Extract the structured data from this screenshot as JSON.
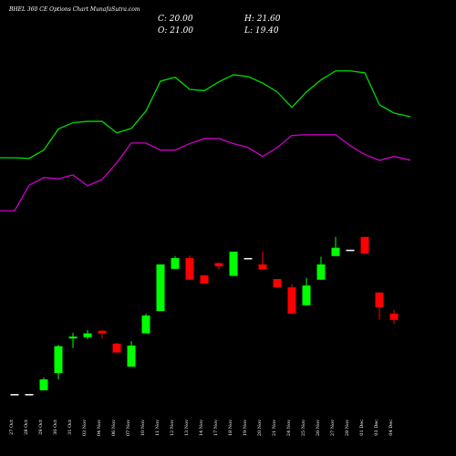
{
  "chart_data": {
    "type": "candlestick",
    "title": "BHEL 360 CE Options Chart MunafaSutra.com",
    "ohlc_labels": [
      "C: 20.00",
      "H: 21.60",
      "O: 21.00",
      "L: 19.40"
    ],
    "categories": [
      "27 Oct",
      "28 Oct",
      "29 Oct",
      "30 Oct",
      "31 Oct",
      "03 Nov",
      "04 Nov",
      "06 Nov",
      "07 Nov",
      "10 Nov",
      "11 Nov",
      "12 Nov",
      "13 Nov",
      "14 Nov",
      "17 Nov",
      "18 Nov",
      "19 Nov",
      "20 Nov",
      "21 Nov",
      "24 Nov",
      "25 Nov",
      "26 Nov",
      "27 Nov",
      "28 Nov",
      "01 Dec",
      "03 Dec",
      "04 Dec"
    ],
    "open": [
      8.4,
      8.4,
      9.0,
      11.7,
      17.1,
      17.3,
      18.3,
      16.3,
      12.7,
      17.9,
      21.4,
      28.0,
      29.7,
      27.0,
      28.9,
      26.9,
      29.7,
      28.7,
      26.4,
      25.1,
      22.3,
      26.3,
      30.0,
      31.0,
      33.0,
      24.3,
      21.0
    ],
    "high": [
      8.4,
      8.4,
      11.0,
      16.1,
      18.0,
      18.4,
      18.4,
      16.4,
      16.7,
      21.0,
      28.7,
      30.0,
      30.1,
      27.0,
      29.0,
      30.7,
      29.7,
      30.7,
      26.4,
      25.6,
      26.6,
      29.9,
      33.0,
      31.0,
      33.0,
      24.3,
      21.6
    ],
    "low": [
      8.4,
      8.4,
      9.0,
      10.7,
      15.6,
      17.0,
      17.1,
      14.9,
      12.7,
      17.9,
      21.4,
      28.0,
      26.3,
      25.7,
      27.9,
      26.9,
      29.7,
      27.9,
      25.1,
      21.0,
      22.3,
      26.3,
      30.0,
      31.0,
      30.4,
      20.1,
      19.4
    ],
    "close": [
      8.4,
      8.4,
      10.7,
      15.9,
      17.4,
      17.9,
      17.9,
      14.9,
      16.0,
      20.7,
      28.7,
      29.7,
      26.3,
      25.7,
      28.4,
      30.7,
      29.7,
      27.9,
      25.1,
      21.0,
      25.4,
      28.7,
      31.3,
      31.0,
      30.4,
      22.0,
      20.0
    ],
    "up_color": "#00ff00",
    "down_color": "#ff0000",
    "lines": [
      {
        "color": "#00dd00",
        "values": [
          45.4,
          45.3,
          46.6,
          49.9,
          50.9,
          51.1,
          51.1,
          49.3,
          50.0,
          52.7,
          57.4,
          58.0,
          56.1,
          55.9,
          57.3,
          58.4,
          58.1,
          57.1,
          55.7,
          53.3,
          55.7,
          57.6,
          59.0,
          59.0,
          58.7,
          53.7,
          52.4
        ]
      },
      {
        "color": "#cc00cc",
        "values": [
          37.1,
          41.1,
          42.3,
          42.1,
          42.7,
          41.0,
          42.0,
          44.6,
          47.7,
          47.7,
          46.6,
          46.6,
          47.6,
          48.4,
          48.4,
          47.6,
          47.0,
          45.6,
          47.0,
          48.9,
          49.0,
          49.0,
          49.0,
          47.3,
          45.9,
          45.0,
          45.6
        ]
      }
    ],
    "ylim": [
      -1.3,
      70.1
    ]
  }
}
